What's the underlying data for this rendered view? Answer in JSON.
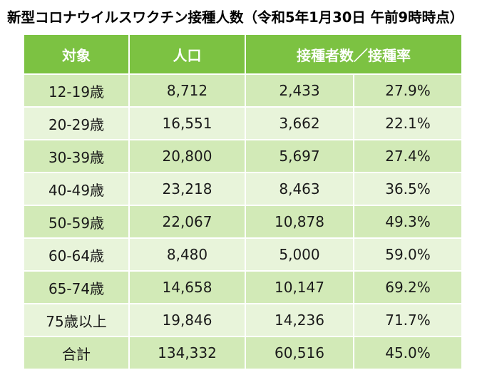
{
  "title": "新型コロナウイルスワクチン接種人数（令和5年1月30日 午前9時時点）",
  "table": {
    "headers": {
      "target": "対象",
      "population": "人口",
      "vaccinated": "接種者数／接種率"
    },
    "rows": [
      {
        "age": "12-19歳",
        "population": "8,712",
        "vaccinated": "2,433",
        "rate": "27.9%"
      },
      {
        "age": "20-29歳",
        "population": "16,551",
        "vaccinated": "3,662",
        "rate": "22.1%"
      },
      {
        "age": "30-39歳",
        "population": "20,800",
        "vaccinated": "5,697",
        "rate": "27.4%"
      },
      {
        "age": "40-49歳",
        "population": "23,218",
        "vaccinated": "8,463",
        "rate": "36.5%"
      },
      {
        "age": "50-59歳",
        "population": "22,067",
        "vaccinated": "10,878",
        "rate": "49.3%"
      },
      {
        "age": "60-64歳",
        "population": "8,480",
        "vaccinated": "5,000",
        "rate": "59.0%"
      },
      {
        "age": "65-74歳",
        "population": "14,658",
        "vaccinated": "10,147",
        "rate": "69.2%"
      },
      {
        "age": "75歳以上",
        "population": "19,846",
        "vaccinated": "14,236",
        "rate": "71.7%"
      }
    ],
    "total": {
      "label": "合計",
      "population": "134,332",
      "vaccinated": "60,516",
      "rate": "45.0%"
    }
  },
  "colors": {
    "header_bg": "#7cc242",
    "row_dark": "#d2eab7",
    "row_light": "#e8f4da"
  }
}
